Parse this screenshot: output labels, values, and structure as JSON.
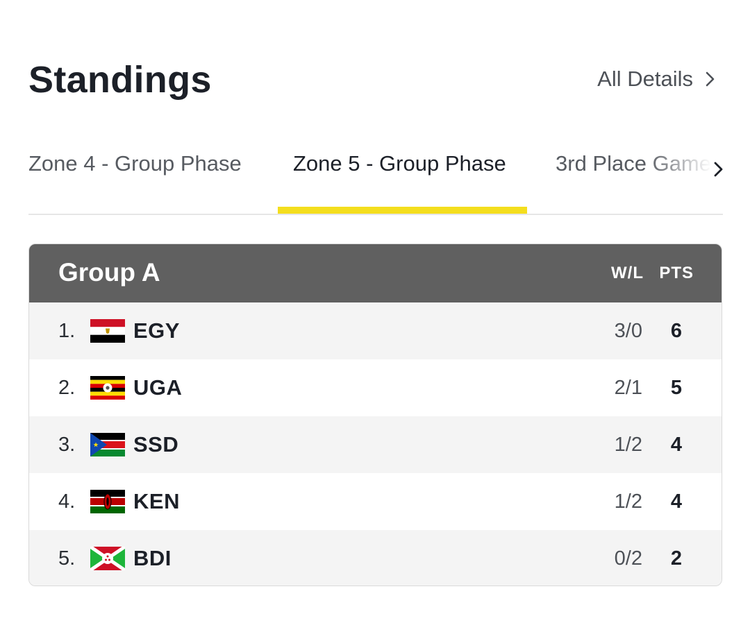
{
  "header": {
    "title": "Standings",
    "all_details_label": "All Details"
  },
  "tabs": [
    {
      "label": "Zone 4 - Group Phase",
      "active": false
    },
    {
      "label": "Zone 5 - Group Phase",
      "active": true
    },
    {
      "label": "3rd Place Game",
      "active": false
    }
  ],
  "accent_color": "#f4de1e",
  "group": {
    "name": "Group A",
    "col_wl": "W/L",
    "col_pts": "PTS",
    "rows": [
      {
        "rank": "1.",
        "team": "EGY",
        "flag": "egypt-flag-icon",
        "wl": "3/0",
        "pts": "6"
      },
      {
        "rank": "2.",
        "team": "UGA",
        "flag": "uganda-flag-icon",
        "wl": "2/1",
        "pts": "5"
      },
      {
        "rank": "3.",
        "team": "SSD",
        "flag": "south-sudan-flag-icon",
        "wl": "1/2",
        "pts": "4"
      },
      {
        "rank": "4.",
        "team": "KEN",
        "flag": "kenya-flag-icon",
        "wl": "1/2",
        "pts": "4"
      },
      {
        "rank": "5.",
        "team": "BDI",
        "flag": "burundi-flag-icon",
        "wl": "0/2",
        "pts": "2"
      }
    ]
  }
}
